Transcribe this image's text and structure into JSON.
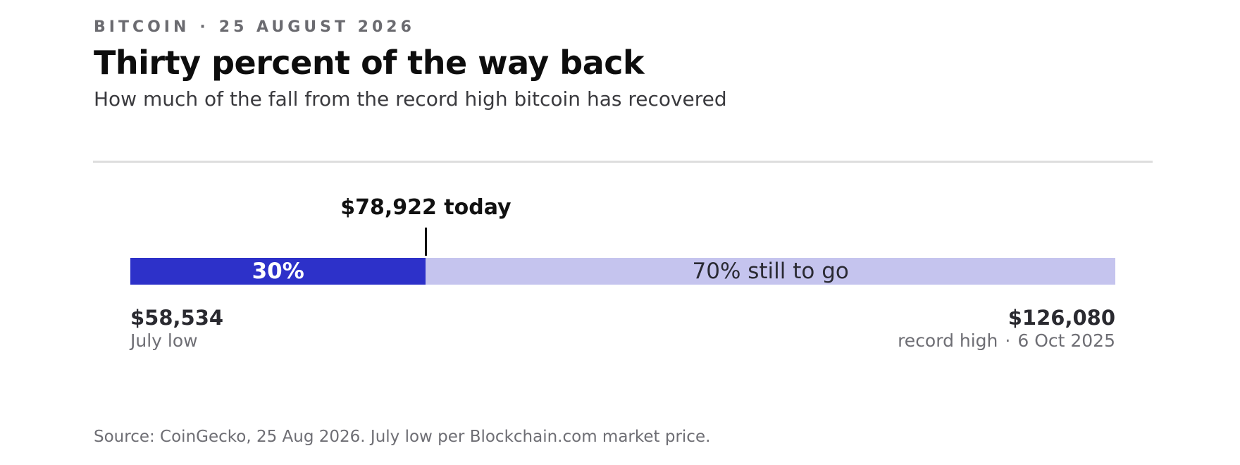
{
  "header": {
    "kicker_topic": "BITCOIN",
    "kicker_separator": "·",
    "kicker_date": "25 AUGUST 2026",
    "title": "Thirty percent of the way back",
    "subtitle": "How much of the fall from the record high bitcoin has recovered"
  },
  "chart_data": {
    "type": "bar",
    "min_value": 58534,
    "max_value": 126080,
    "current_value": 78922,
    "recovered_fraction": 0.3,
    "marker_label": "$78,922 today",
    "filled_label": "30%",
    "remaining_label": "70% still to go",
    "start": {
      "value_label": "$58,534",
      "note": "July low"
    },
    "end": {
      "value_label": "$126,080",
      "note": "record high",
      "separator": "·",
      "date": "6 Oct 2025"
    },
    "colors": {
      "filled": "#2d31c9",
      "remaining": "#c5c4ee"
    }
  },
  "footer": {
    "source": "Source: CoinGecko, 25 Aug 2026. July low per Blockchain.com market price."
  }
}
